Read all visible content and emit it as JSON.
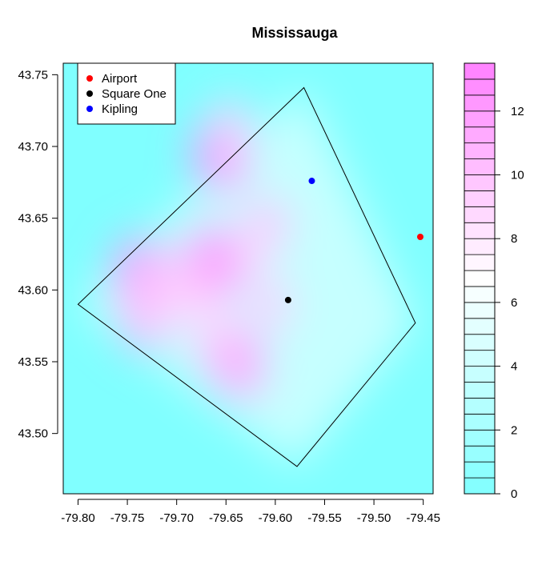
{
  "chart_data": {
    "type": "heatmap",
    "title": "Mississauga",
    "xlabel": "",
    "ylabel": "",
    "xlim": [
      -79.815,
      -79.44
    ],
    "ylim": [
      43.458,
      43.758
    ],
    "x_ticks": [
      -79.8,
      -79.75,
      -79.7,
      -79.65,
      -79.6,
      -79.55,
      -79.5,
      -79.45
    ],
    "x_tick_labels": [
      "-79.80",
      "-79.75",
      "-79.70",
      "-79.65",
      "-79.60",
      "-79.55",
      "-79.50",
      "-79.45"
    ],
    "y_ticks": [
      43.5,
      43.55,
      43.6,
      43.65,
      43.7,
      43.75
    ],
    "y_tick_labels": [
      "43.50",
      "43.55",
      "43.60",
      "43.65",
      "43.70",
      "43.75"
    ],
    "colorbar": {
      "min": 0,
      "max": 13.5,
      "levels": 27,
      "ticks": [
        0,
        2,
        4,
        6,
        8,
        10,
        12
      ],
      "tick_labels": [
        "0",
        "2",
        "4",
        "6",
        "8",
        "10",
        "12"
      ],
      "low_color": "#80ffff",
      "mid_color": "#ffffff",
      "high_color": "#ff80ff"
    },
    "hotspots": [
      {
        "x": -79.655,
        "y": 43.695,
        "value": 12.5
      },
      {
        "x": -79.645,
        "y": 43.715,
        "value": 9
      },
      {
        "x": -79.608,
        "y": 43.645,
        "value": 10
      },
      {
        "x": -79.628,
        "y": 43.625,
        "value": 8.5
      },
      {
        "x": -79.665,
        "y": 43.617,
        "value": 13
      },
      {
        "x": -79.685,
        "y": 43.605,
        "value": 10.5
      },
      {
        "x": -79.738,
        "y": 43.612,
        "value": 12
      },
      {
        "x": -79.733,
        "y": 43.578,
        "value": 10.5
      },
      {
        "x": -79.705,
        "y": 43.595,
        "value": 9
      },
      {
        "x": -79.605,
        "y": 43.59,
        "value": 9.5
      },
      {
        "x": -79.658,
        "y": 43.562,
        "value": 10.5
      },
      {
        "x": -79.635,
        "y": 43.547,
        "value": 11.5
      },
      {
        "x": -79.665,
        "y": 43.58,
        "value": 8.5
      }
    ],
    "boundary": [
      [
        -79.8,
        43.59
      ],
      [
        -79.571,
        43.741
      ],
      [
        -79.458,
        43.577
      ],
      [
        -79.578,
        43.477
      ]
    ],
    "series": [
      {
        "name": "Airport",
        "x": -79.453,
        "y": 43.637,
        "color": "#ff0000"
      },
      {
        "name": "Square One",
        "x": -79.587,
        "y": 43.593,
        "color": "#000000"
      },
      {
        "name": "Kipling",
        "x": -79.563,
        "y": 43.676,
        "color": "#0000ff"
      }
    ],
    "legend_position": "top-left",
    "grid": false
  }
}
